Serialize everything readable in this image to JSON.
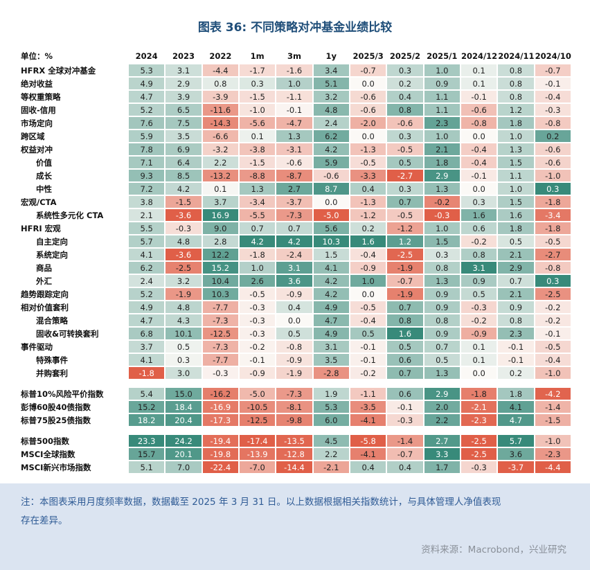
{
  "title": "图表 36: 不同策略对冲基金业绩比较",
  "footer": {
    "note_line1": "注：本图表采用月度频率数据，数据截至 2025 年 3 月 31 日。以上数据根据相关指数统计，与具体管理人净值表现",
    "note_line2": "存在差异。",
    "source": "资料来源：Macrobond，兴业研究"
  },
  "colors": {
    "title_text": "#1f4e79",
    "note_bg": "#dbe4f1",
    "note_text": "#2f5b95",
    "source_text": "#8a9099",
    "positive_full": "#388a7a",
    "negative_full": "#e05f48",
    "cell_base": "#fbf9f6"
  },
  "chart_data": {
    "type": "heatmap",
    "title": "图表 36: 不同策略对冲基金业绩比较",
    "unit_label": "单位：%",
    "color_scale": "per-column, red = column minimum, green = column maximum",
    "columns": [
      "2024",
      "2023",
      "2022",
      "1m",
      "3m",
      "1y",
      "2025/3",
      "2025/2",
      "2025/1",
      "2024/12",
      "2024/11",
      "2024/10"
    ],
    "rows": [
      {
        "label": "HFRX 全球对冲基金",
        "indent": 0,
        "values": [
          5.3,
          3.1,
          -4.4,
          -1.7,
          -1.6,
          3.4,
          -0.7,
          0.3,
          1.0,
          0.1,
          0.8,
          -0.7
        ]
      },
      {
        "label": "绝对收益",
        "indent": 0,
        "values": [
          4.9,
          2.9,
          0.8,
          0.3,
          1.0,
          5.1,
          0.0,
          0.2,
          0.9,
          0.1,
          0.8,
          -0.1
        ]
      },
      {
        "label": "等权重策略",
        "indent": 0,
        "values": [
          4.7,
          3.9,
          -3.9,
          -1.5,
          -1.1,
          3.2,
          -0.6,
          0.4,
          1.1,
          -0.1,
          0.8,
          -0.4
        ]
      },
      {
        "label": "固收-信用",
        "indent": 0,
        "values": [
          5.2,
          6.5,
          -11.6,
          -1.0,
          -0.1,
          4.8,
          -0.6,
          0.8,
          1.1,
          -0.6,
          1.2,
          -0.3
        ]
      },
      {
        "label": "市场定向",
        "indent": 0,
        "values": [
          7.6,
          7.5,
          -14.3,
          -5.6,
          -4.7,
          2.4,
          -2.0,
          -0.6,
          2.3,
          -0.8,
          1.8,
          -0.8
        ]
      },
      {
        "label": "跨区域",
        "indent": 0,
        "values": [
          5.9,
          3.5,
          -6.6,
          0.1,
          1.3,
          6.2,
          0.0,
          0.3,
          1.0,
          0.0,
          1.0,
          0.2
        ]
      },
      {
        "label": "权益对冲",
        "indent": 0,
        "values": [
          7.8,
          6.9,
          -3.2,
          -3.8,
          -3.1,
          4.2,
          -1.3,
          -0.5,
          2.1,
          -0.4,
          1.3,
          -0.6
        ]
      },
      {
        "label": "价值",
        "indent": 1,
        "values": [
          7.1,
          6.4,
          2.2,
          -1.5,
          -0.6,
          5.9,
          -0.5,
          0.5,
          1.8,
          -0.4,
          1.5,
          -0.6
        ]
      },
      {
        "label": "成长",
        "indent": 1,
        "values": [
          9.3,
          8.5,
          -13.2,
          -8.8,
          -8.7,
          -0.6,
          -3.3,
          -2.7,
          2.9,
          -0.1,
          1.1,
          -1.0
        ]
      },
      {
        "label": "中性",
        "indent": 1,
        "values": [
          7.2,
          4.2,
          0.1,
          1.3,
          2.7,
          8.7,
          0.4,
          0.3,
          1.3,
          0.0,
          1.0,
          0.3
        ]
      },
      {
        "label": "宏观/CTA",
        "indent": 0,
        "values": [
          3.8,
          -1.5,
          3.7,
          -3.4,
          -3.7,
          0.0,
          -1.3,
          0.7,
          -0.2,
          0.3,
          1.5,
          -1.8
        ]
      },
      {
        "label": "系统性多元化 CTA",
        "indent": 1,
        "values": [
          2.1,
          -3.6,
          16.9,
          -5.5,
          -7.3,
          -5.0,
          -1.2,
          -0.5,
          -0.3,
          1.6,
          1.6,
          -3.4
        ]
      },
      {
        "label": "HFRI 宏观",
        "indent": 0,
        "values": [
          5.5,
          -0.3,
          9.0,
          0.7,
          0.7,
          5.6,
          0.2,
          -1.2,
          1.0,
          0.6,
          1.8,
          -1.8
        ]
      },
      {
        "label": "自主定向",
        "indent": 1,
        "values": [
          5.7,
          4.8,
          2.8,
          4.2,
          4.2,
          10.3,
          1.6,
          1.2,
          1.5,
          -0.2,
          0.5,
          -0.5
        ]
      },
      {
        "label": "系统定向",
        "indent": 1,
        "values": [
          4.1,
          -3.6,
          12.2,
          -1.8,
          -2.4,
          1.5,
          -0.4,
          -2.5,
          0.3,
          0.8,
          2.1,
          -2.7
        ]
      },
      {
        "label": "商品",
        "indent": 1,
        "values": [
          6.2,
          -2.5,
          15.2,
          1.0,
          3.1,
          4.1,
          -0.9,
          -1.9,
          0.8,
          3.1,
          2.9,
          -0.8
        ]
      },
      {
        "label": "外汇",
        "indent": 1,
        "values": [
          2.4,
          3.2,
          10.4,
          2.6,
          3.6,
          4.2,
          1.0,
          -0.7,
          1.3,
          0.9,
          0.7,
          0.3
        ]
      },
      {
        "label": "趋势跟踪定向",
        "indent": 0,
        "values": [
          5.2,
          -1.9,
          10.3,
          -0.5,
          -0.9,
          4.2,
          0.0,
          -1.9,
          0.9,
          0.5,
          2.1,
          -2.5
        ]
      },
      {
        "label": "相对价值套利",
        "indent": 0,
        "values": [
          4.9,
          4.8,
          -7.7,
          -0.3,
          0.4,
          4.9,
          -0.5,
          0.7,
          0.9,
          -0.3,
          0.9,
          -0.2
        ]
      },
      {
        "label": "混合策略",
        "indent": 1,
        "values": [
          4.7,
          4.3,
          -7.3,
          -0.3,
          0.0,
          4.7,
          -0.4,
          0.8,
          0.8,
          -0.2,
          0.8,
          -0.2
        ]
      },
      {
        "label": "固收&可转换套利",
        "indent": 1,
        "values": [
          6.8,
          10.1,
          -12.5,
          -0.3,
          0.5,
          4.9,
          0.5,
          1.6,
          0.9,
          -0.9,
          2.3,
          -0.1
        ]
      },
      {
        "label": "事件驱动",
        "indent": 0,
        "values": [
          3.7,
          0.5,
          -7.3,
          -0.2,
          -0.8,
          3.1,
          -0.1,
          0.5,
          0.7,
          0.1,
          -0.1,
          -0.5
        ]
      },
      {
        "label": "特殊事件",
        "indent": 1,
        "values": [
          4.1,
          0.3,
          -7.7,
          -0.1,
          -0.9,
          3.5,
          -0.1,
          0.6,
          0.5,
          0.1,
          -0.1,
          -0.4
        ]
      },
      {
        "label": "并购套利",
        "indent": 1,
        "values": [
          -1.8,
          3.0,
          -0.3,
          -0.9,
          -1.9,
          -2.8,
          -0.2,
          0.7,
          1.3,
          0.0,
          0.2,
          -1.0
        ]
      },
      {
        "gap": true
      },
      {
        "label": "标普10%风险平价指数",
        "indent": 0,
        "values": [
          5.4,
          15.0,
          -16.2,
          -5.0,
          -7.3,
          1.9,
          -1.1,
          0.6,
          2.9,
          -1.8,
          1.8,
          -4.2
        ]
      },
      {
        "label": "彭博60股40债指数",
        "indent": 0,
        "values": [
          15.2,
          18.4,
          -16.9,
          -10.5,
          -8.1,
          5.3,
          -3.5,
          -0.1,
          2.0,
          -2.1,
          4.1,
          -1.4
        ]
      },
      {
        "label": "标普75股25债指数",
        "indent": 0,
        "values": [
          18.2,
          20.4,
          -17.3,
          -12.5,
          -9.8,
          6.0,
          -4.1,
          -0.3,
          2.2,
          -2.3,
          4.7,
          -1.5
        ]
      },
      {
        "gap": true
      },
      {
        "label": "标普500指数",
        "indent": 0,
        "values": [
          23.3,
          24.2,
          -19.4,
          -17.4,
          -13.5,
          4.5,
          -5.8,
          -1.4,
          2.7,
          -2.5,
          5.7,
          -1.0
        ]
      },
      {
        "label": "MSCI全球指数",
        "indent": 0,
        "values": [
          15.7,
          20.1,
          -19.8,
          -13.9,
          -12.8,
          2.2,
          -4.1,
          -0.7,
          3.3,
          -2.5,
          3.6,
          -2.3
        ]
      },
      {
        "label": "MSCI新兴市场指数",
        "indent": 0,
        "values": [
          5.1,
          7.0,
          -22.4,
          -7.0,
          -14.4,
          -2.1,
          0.4,
          0.4,
          1.7,
          -0.3,
          -3.7,
          -4.4
        ]
      }
    ]
  }
}
